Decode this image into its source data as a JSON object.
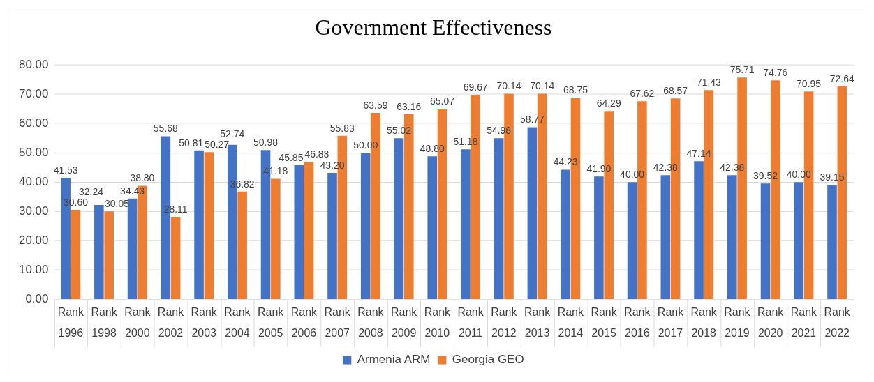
{
  "chart_data": {
    "type": "bar",
    "title": "Government Effectiveness",
    "categories": [
      "Rank 1996",
      "Rank 1998",
      "Rank 2000",
      "Rank 2002",
      "Rank 2003",
      "Rank 2004",
      "Rank 2005",
      "Rank 2006",
      "Rank 2007",
      "Rank 2008",
      "Rank 2009",
      "Rank 2010",
      "Rank 2011",
      "Rank 2012",
      "Rank 2013",
      "Rank 2014",
      "Rank 2015",
      "Rank 2016",
      "Rank 2017",
      "Rank 2018",
      "Rank 2019",
      "Rank 2020",
      "Rank 2021",
      "Rank 2022"
    ],
    "series": [
      {
        "name": "Armenia ARM",
        "color": "#4472c4",
        "values": [
          41.53,
          32.24,
          34.43,
          55.68,
          50.81,
          52.74,
          50.98,
          45.85,
          43.2,
          50.0,
          55.02,
          48.8,
          51.18,
          54.98,
          58.77,
          44.23,
          41.9,
          40.0,
          42.38,
          47.14,
          42.38,
          39.52,
          40.0,
          39.15
        ],
        "value_labels": [
          "41.53",
          "32.24",
          "34.43",
          "55.68",
          "50.81",
          "52.74",
          "50.98",
          "45.85",
          "43.20",
          "50.00",
          "55.02",
          "48.80",
          "51.18",
          "54.98",
          "58.77",
          "44.23",
          "41.90",
          "40.00",
          "42.38",
          "47.14",
          "42.38",
          "39.52",
          "40.00",
          "39.15"
        ]
      },
      {
        "name": "Georgia GEO",
        "color": "#ed7d31",
        "values": [
          30.6,
          30.05,
          38.8,
          28.11,
          50.27,
          36.82,
          41.18,
          46.83,
          55.83,
          63.59,
          63.16,
          65.07,
          69.67,
          70.14,
          70.14,
          68.75,
          64.29,
          67.62,
          68.57,
          71.43,
          75.71,
          74.76,
          70.95,
          72.64
        ],
        "value_labels": [
          "30.60",
          "30.05",
          "38.80",
          "28.11",
          "50.27",
          "36.82",
          "41.18",
          "46.83",
          "55.83",
          "63.59",
          "63.16",
          "65.07",
          "69.67",
          "70.14",
          "70.14",
          "68.75",
          "64.29",
          "67.62",
          "68.57",
          "71.43",
          "75.71",
          "74.76",
          "70.95",
          "72.64"
        ]
      }
    ],
    "ylim": [
      0,
      80
    ],
    "yticks": [
      {
        "value": 0,
        "label": "0.00"
      },
      {
        "value": 10,
        "label": "10.00"
      },
      {
        "value": 20,
        "label": "20.00"
      },
      {
        "value": 30,
        "label": "30.00"
      },
      {
        "value": 40,
        "label": "40.00"
      },
      {
        "value": 50,
        "label": "50.00"
      },
      {
        "value": 60,
        "label": "60.00"
      },
      {
        "value": 70,
        "label": "70.00"
      },
      {
        "value": 80,
        "label": "80.00"
      }
    ],
    "grid": "y",
    "legend": "bottom"
  }
}
